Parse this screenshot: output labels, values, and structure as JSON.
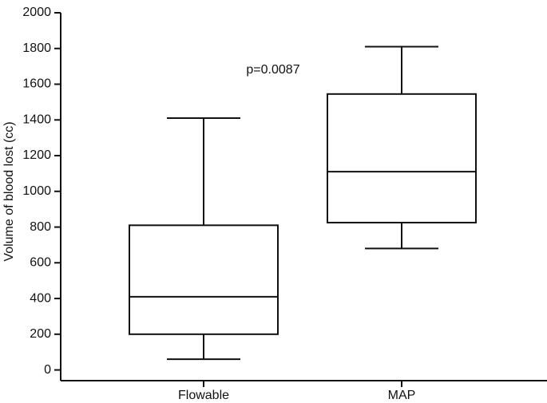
{
  "chart_data": {
    "type": "box",
    "y_label": "Volume of blood lost (cc)",
    "annotation": "p=0.0087",
    "categories": [
      "Flowable",
      "MAP"
    ],
    "boxes": [
      {
        "min": 60,
        "q1": 200,
        "median": 410,
        "q3": 810,
        "max": 1410
      },
      {
        "min": 680,
        "q1": 825,
        "median": 1110,
        "q3": 1545,
        "max": 1810
      }
    ],
    "color": "#111111",
    "ylim": [
      -60,
      2000
    ],
    "yticks": [
      0,
      200,
      400,
      600,
      800,
      1000,
      1200,
      1400,
      1600,
      1800,
      2000
    ]
  }
}
